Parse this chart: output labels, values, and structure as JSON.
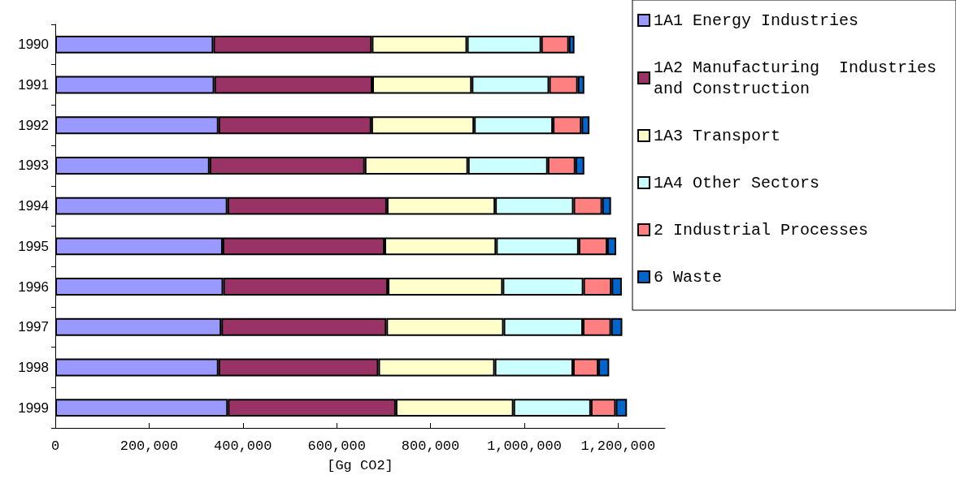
{
  "chart_data": {
    "type": "bar",
    "orientation": "horizontal",
    "stacked": true,
    "xlabel": "[Gg CO2]",
    "categories": [
      "1990",
      "1991",
      "1992",
      "1993",
      "1994",
      "1995",
      "1996",
      "1997",
      "1998",
      "1999"
    ],
    "series": [
      {
        "name": "1A1 Energy Industries",
        "color": "#9999ff",
        "values": [
          337000,
          339000,
          348000,
          329000,
          367000,
          357000,
          358000,
          354000,
          348000,
          368000
        ]
      },
      {
        "name": "1A2 Manufacturing  Industries and Construction",
        "color": "#993366",
        "values": [
          338000,
          337000,
          326000,
          331000,
          340000,
          345000,
          351000,
          352000,
          341000,
          358000
        ]
      },
      {
        "name": "1A3 Transport",
        "color": "#ffffcc",
        "values": [
          203000,
          212000,
          219000,
          220000,
          231000,
          238000,
          245000,
          250000,
          248000,
          251000
        ]
      },
      {
        "name": "1A4 Other Sectors",
        "color": "#ccffff",
        "values": [
          158000,
          165000,
          168000,
          170000,
          167000,
          176000,
          172000,
          169000,
          167000,
          165000
        ]
      },
      {
        "name": "2 Industrial Processes",
        "color": "#ff8080",
        "values": [
          59000,
          61000,
          61000,
          59000,
          61000,
          61000,
          60000,
          60000,
          54000,
          53000
        ]
      },
      {
        "name": "6 Waste",
        "color": "#0066cc",
        "values": [
          12000,
          14000,
          17000,
          19000,
          19000,
          19000,
          22000,
          24000,
          23000,
          24000
        ]
      }
    ],
    "xlim": [
      0,
      1300000
    ],
    "xticks": [
      0,
      {
        "value": 200000,
        "label": "200,000"
      },
      {
        "value": 400000,
        "label": "400,000"
      },
      {
        "value": 600000,
        "label": "600,000"
      },
      {
        "value": 800000,
        "label": "800,000"
      },
      {
        "value": 1000000,
        "label": "1,000,000"
      },
      {
        "value": 1200000,
        "label": "1,200,000"
      }
    ],
    "grid": false,
    "legend": "top right"
  }
}
